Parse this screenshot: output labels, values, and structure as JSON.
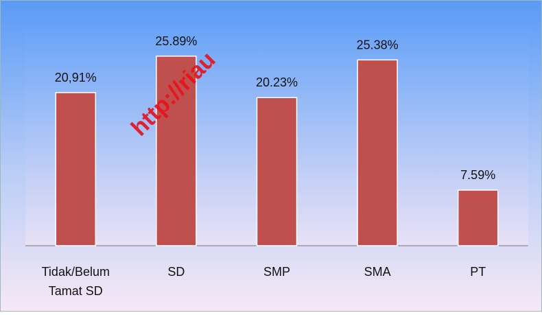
{
  "chart_data": {
    "type": "bar",
    "categories": [
      "Tidak/Belum Tamat SD",
      "SD",
      "SMP",
      "SMA",
      "PT"
    ],
    "values": [
      20.91,
      25.89,
      20.23,
      25.38,
      7.59
    ],
    "value_labels": [
      "20,91%",
      "25.89%",
      "20.23%",
      "25.38%",
      "7.59%"
    ],
    "color": "#c0504d",
    "ylim": [
      0,
      30
    ],
    "annotations": [
      "http://riau"
    ]
  }
}
